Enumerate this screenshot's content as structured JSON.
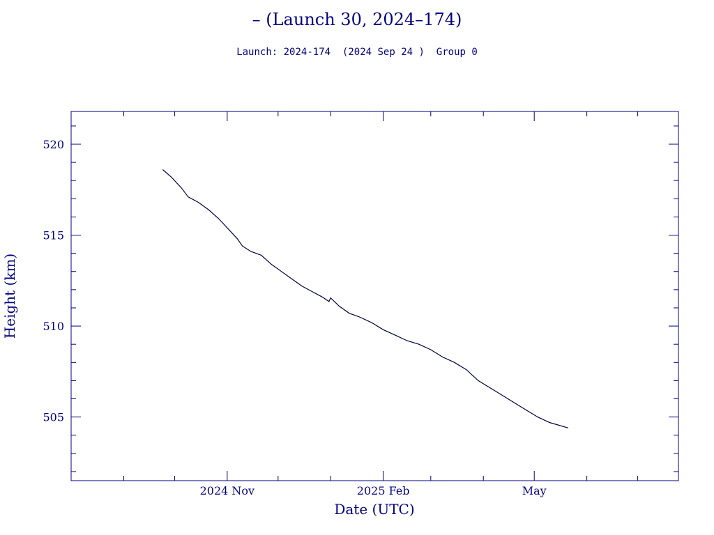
{
  "chart_data": {
    "type": "line",
    "title": "– (Launch 30, 2024–174)",
    "subtitle": "Launch: 2024-174  (2024 Sep 24 )  Group 0",
    "xlabel": "Date (UTC)",
    "ylabel": "Height (km)",
    "x_ticks": [
      {
        "label": "2024 Nov",
        "date": "2024-11-01"
      },
      {
        "label": "2025 Feb",
        "date": "2025-02-01"
      },
      {
        "label": "May",
        "date": "2025-05-01"
      }
    ],
    "x_range": [
      "2024-08-01",
      "2025-07-25"
    ],
    "ylim": [
      501.5,
      521.8
    ],
    "y_ticks": [
      505,
      510,
      515,
      520
    ],
    "y_minor_step": 1,
    "grid": false,
    "colors": {
      "axes": "#000080",
      "line": "#000040"
    },
    "series": [
      {
        "name": "",
        "points": [
          [
            "2024-09-24",
            518.6
          ],
          [
            "2024-09-29",
            518.2
          ],
          [
            "2024-10-05",
            517.6
          ],
          [
            "2024-10-09",
            517.1
          ],
          [
            "2024-10-15",
            516.8
          ],
          [
            "2024-10-21",
            516.4
          ],
          [
            "2024-10-27",
            515.9
          ],
          [
            "2024-11-02",
            515.3
          ],
          [
            "2024-11-07",
            514.8
          ],
          [
            "2024-11-10",
            514.4
          ],
          [
            "2024-11-15",
            514.1
          ],
          [
            "2024-11-21",
            513.9
          ],
          [
            "2024-11-27",
            513.4
          ],
          [
            "2024-12-03",
            513.0
          ],
          [
            "2024-12-09",
            512.6
          ],
          [
            "2024-12-15",
            512.2
          ],
          [
            "2024-12-21",
            511.9
          ],
          [
            "2024-12-27",
            511.6
          ],
          [
            "2024-12-31",
            511.35
          ],
          [
            "2025-01-01",
            511.55
          ],
          [
            "2025-01-06",
            511.1
          ],
          [
            "2025-01-12",
            510.7
          ],
          [
            "2025-01-18",
            510.5
          ],
          [
            "2025-01-25",
            510.2
          ],
          [
            "2025-02-01",
            509.8
          ],
          [
            "2025-02-08",
            509.5
          ],
          [
            "2025-02-15",
            509.2
          ],
          [
            "2025-02-22",
            509.0
          ],
          [
            "2025-03-01",
            508.7
          ],
          [
            "2025-03-08",
            508.3
          ],
          [
            "2025-03-15",
            508.0
          ],
          [
            "2025-03-22",
            507.6
          ],
          [
            "2025-03-29",
            507.0
          ],
          [
            "2025-04-05",
            506.6
          ],
          [
            "2025-04-12",
            506.2
          ],
          [
            "2025-04-19",
            505.8
          ],
          [
            "2025-04-26",
            505.4
          ],
          [
            "2025-05-03",
            505.0
          ],
          [
            "2025-05-10",
            504.7
          ],
          [
            "2025-05-21",
            504.4
          ]
        ]
      }
    ]
  }
}
